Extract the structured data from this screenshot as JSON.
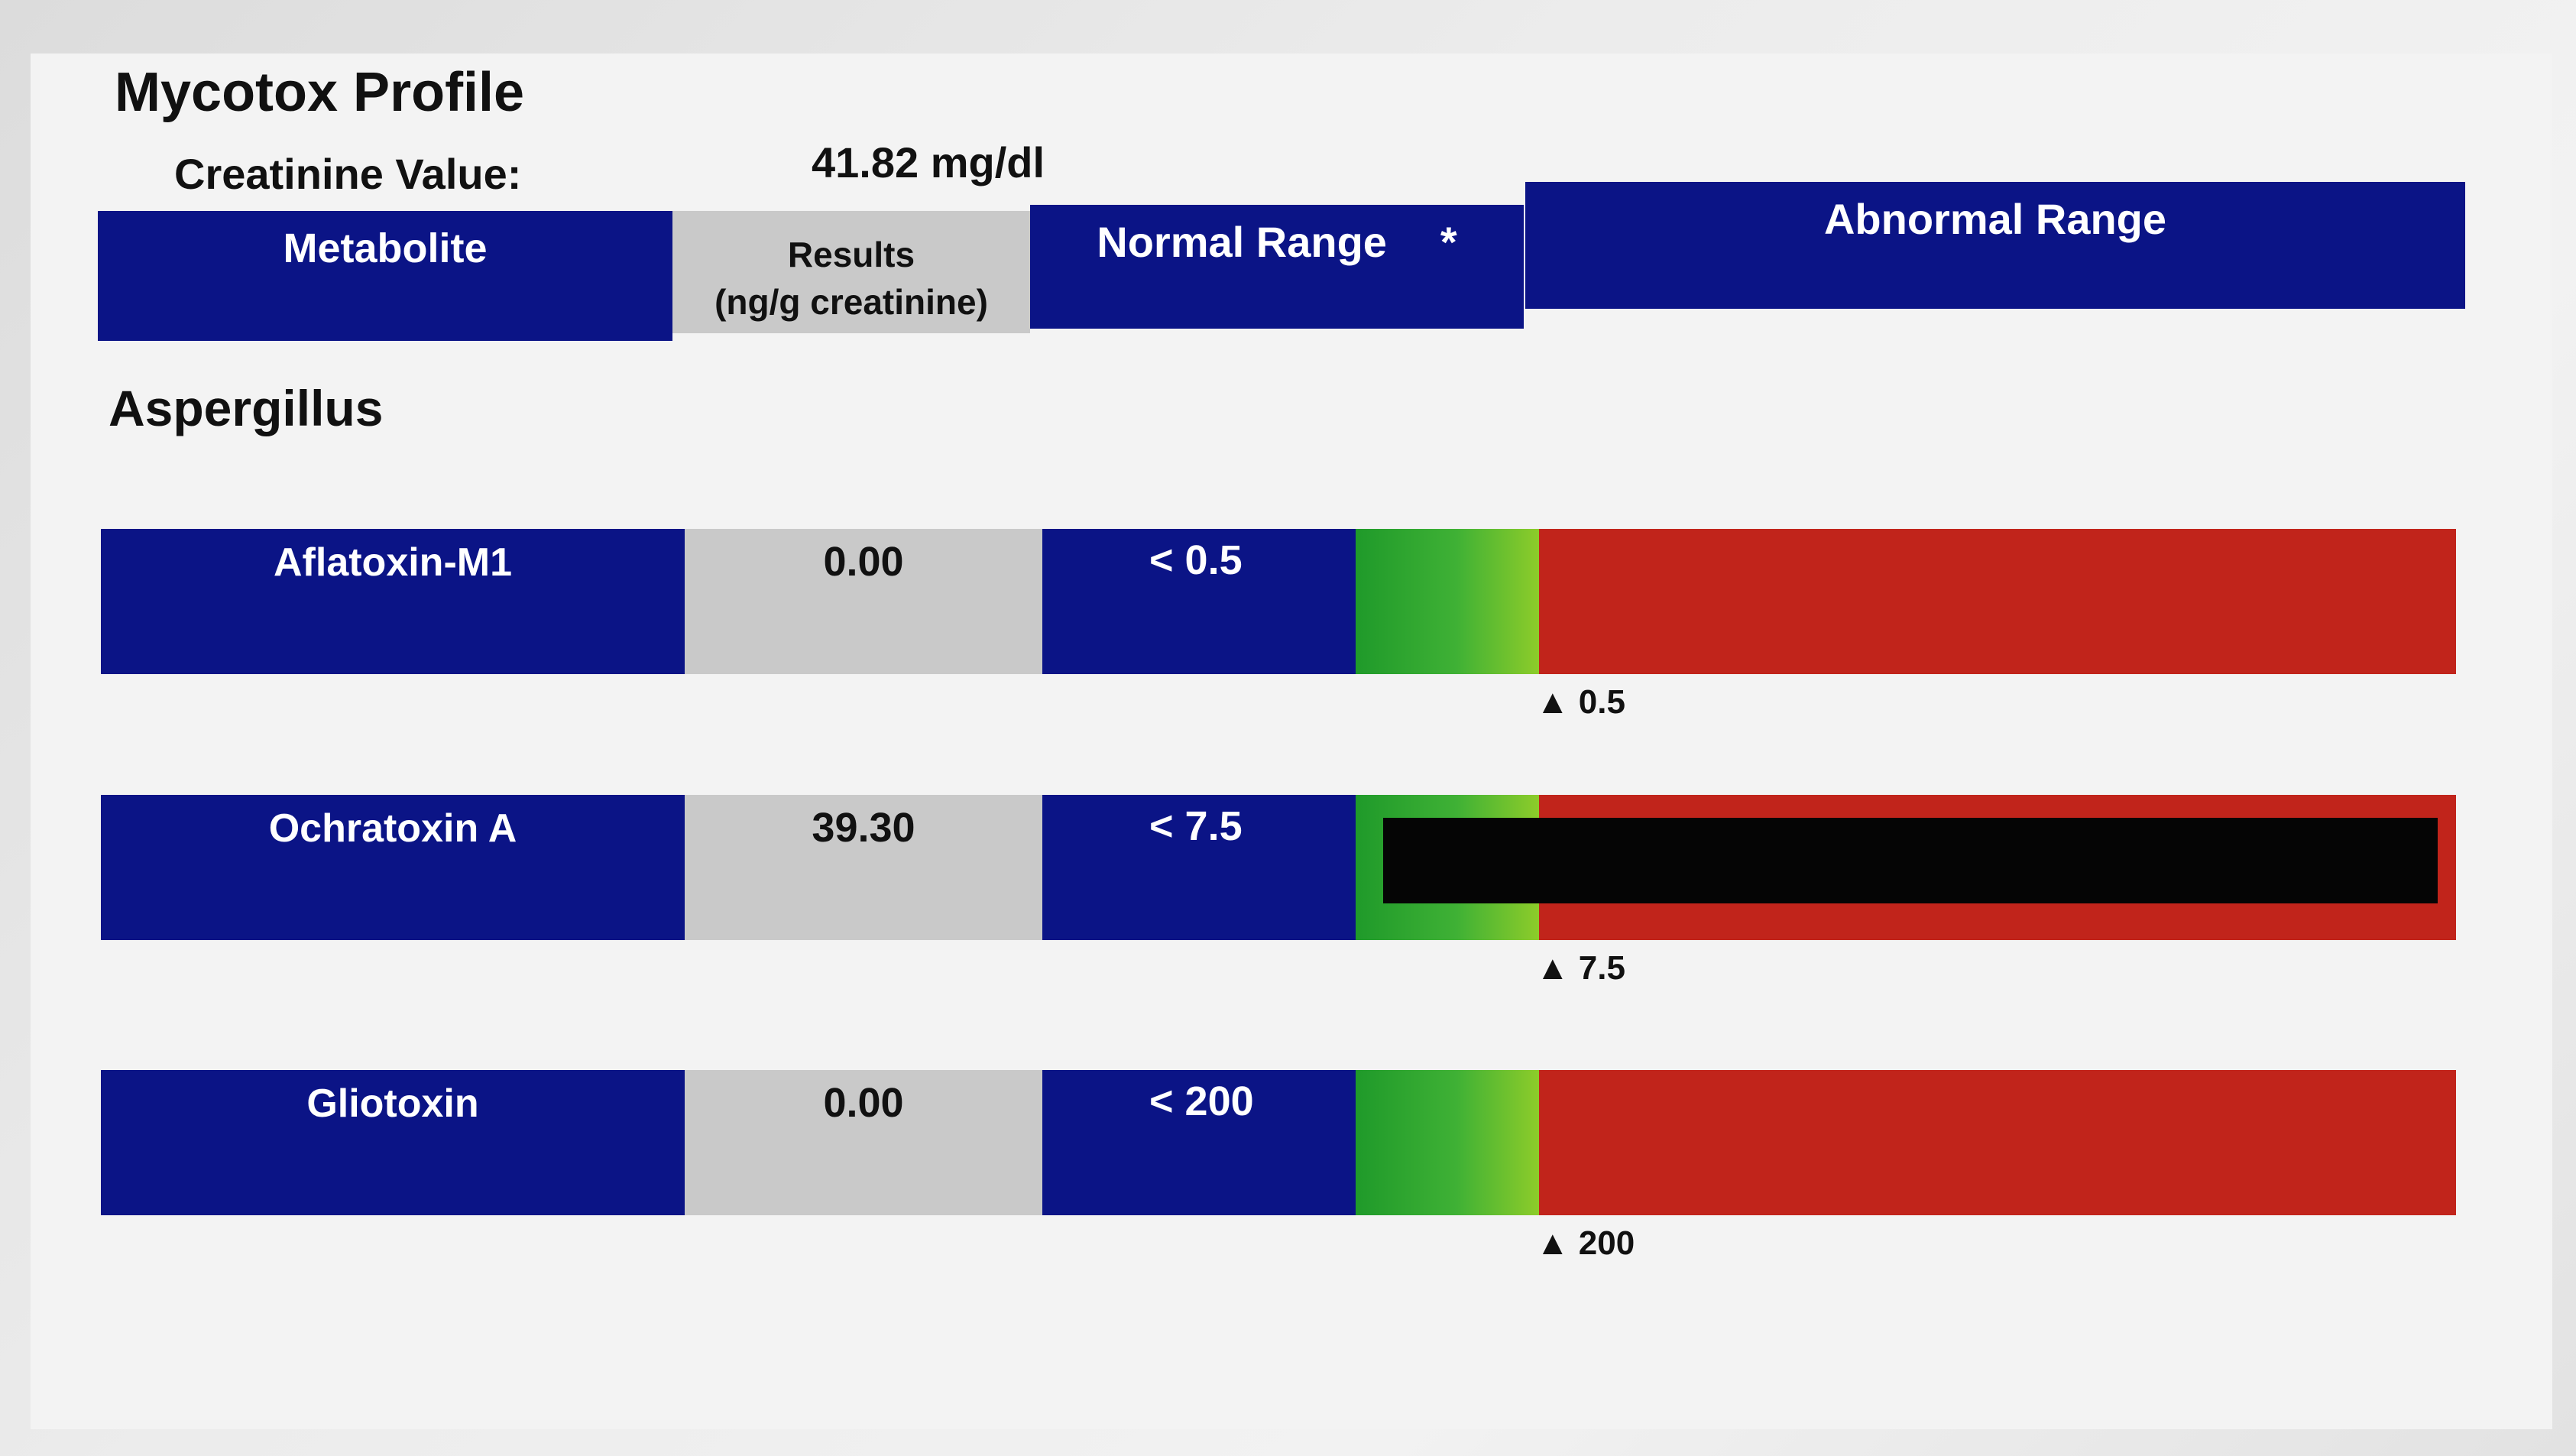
{
  "report": {
    "title": "Mycotox Profile",
    "creatinine_label": "Creatinine Value:",
    "creatinine_value": "41.82 mg/dl"
  },
  "headers": {
    "metabolite": "Metabolite",
    "results_line1": "Results",
    "results_line2": "(ng/g creatinine)",
    "normal_range": "Normal Range",
    "normal_marker": "*",
    "abnormal_range": "Abnormal Range"
  },
  "section": "Aspergillus",
  "rows": [
    {
      "name": "Aflatoxin-M1",
      "result": "0.00",
      "normal": "< 0.5",
      "threshold": "▲ 0.5"
    },
    {
      "name": "Ochratoxin A",
      "result": "39.30",
      "normal": "< 7.5",
      "threshold": "▲ 7.5"
    },
    {
      "name": "Gliotoxin",
      "result": "0.00",
      "normal": "< 200",
      "threshold": "▲ 200"
    }
  ],
  "colors": {
    "navy": "#0b1486",
    "grey": "#c9c9c9",
    "green": "#3fb135",
    "red": "#c1241b",
    "redaction": "#050505"
  }
}
